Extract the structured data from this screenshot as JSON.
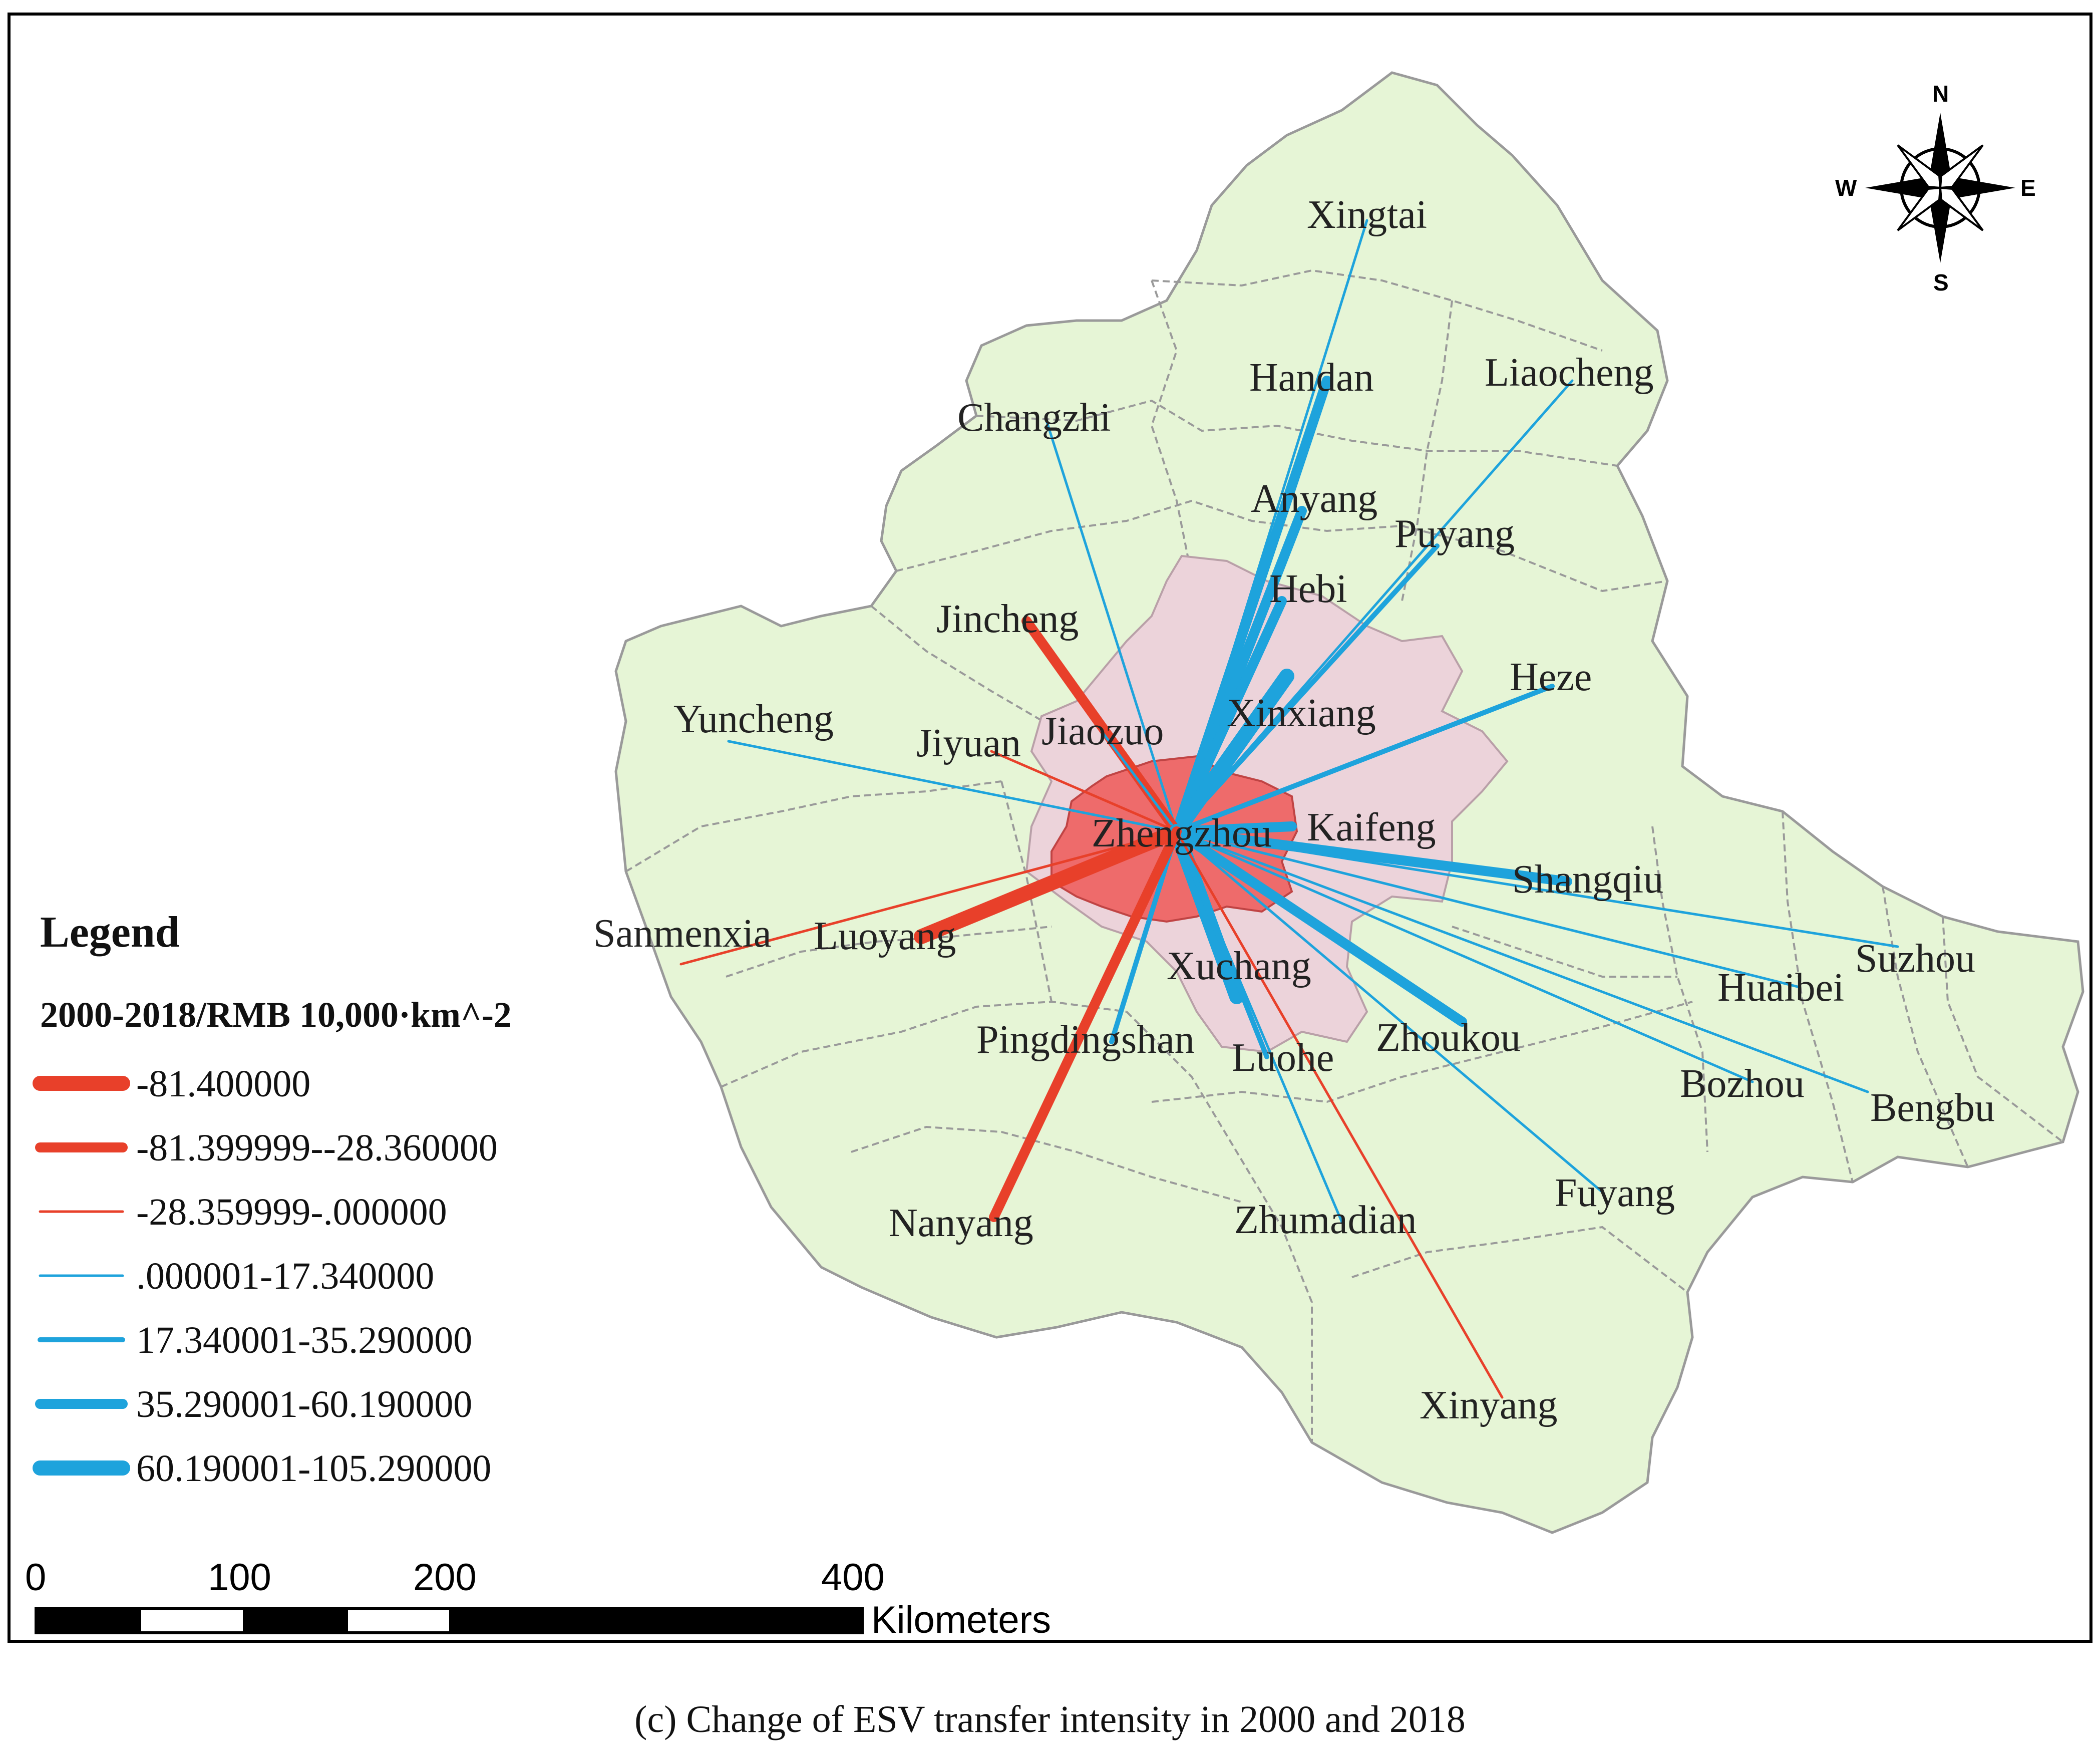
{
  "caption": "(c) Change of ESV transfer intensity in 2000 and 2018",
  "colors": {
    "land": "#e6f5d6",
    "boundary": "#9a9a9a",
    "ring": "#ecd3da",
    "core": "#ee6b6b",
    "negative": "#e8402a",
    "positive": "#1ea3dc"
  },
  "center_city": "Zhengzhou",
  "cities": [
    {
      "name": "Xingtai"
    },
    {
      "name": "Handan"
    },
    {
      "name": "Liaocheng"
    },
    {
      "name": "Changzhi"
    },
    {
      "name": "Anyang"
    },
    {
      "name": "Puyang"
    },
    {
      "name": "Hebi"
    },
    {
      "name": "Jincheng"
    },
    {
      "name": "Heze"
    },
    {
      "name": "Xinxiang"
    },
    {
      "name": "Yuncheng"
    },
    {
      "name": "Jiyuan"
    },
    {
      "name": "Jiaozuo"
    },
    {
      "name": "Zhengzhou"
    },
    {
      "name": "Kaifeng"
    },
    {
      "name": "Shangqiu"
    },
    {
      "name": "Sanmenxia"
    },
    {
      "name": "Luoyang"
    },
    {
      "name": "Xuchang"
    },
    {
      "name": "Suzhou"
    },
    {
      "name": "Huaibei"
    },
    {
      "name": "Pingdingshan"
    },
    {
      "name": "Luohe"
    },
    {
      "name": "Zhoukou"
    },
    {
      "name": "Bozhou"
    },
    {
      "name": "Bengbu"
    },
    {
      "name": "Fuyang"
    },
    {
      "name": "Nanyang"
    },
    {
      "name": "Zhumadian"
    },
    {
      "name": "Xinyang"
    }
  ],
  "flows": [
    {
      "to": "Xingtai",
      "class": 3
    },
    {
      "to": "Handan",
      "class": 5
    },
    {
      "to": "Liaocheng",
      "class": 3
    },
    {
      "to": "Changzhi",
      "class": 3
    },
    {
      "to": "Anyang",
      "class": 5
    },
    {
      "to": "Puyang",
      "class": 4
    },
    {
      "to": "Hebi",
      "class": 5
    },
    {
      "to": "Xinxiang",
      "class": 6
    },
    {
      "to": "Heze",
      "class": 4
    },
    {
      "to": "Jincheng",
      "class": 1
    },
    {
      "to": "Jiaozuo",
      "class": 3
    },
    {
      "to": "Jiyuan",
      "class": 2
    },
    {
      "to": "Yuncheng",
      "class": 3
    },
    {
      "to": "Kaifeng",
      "class": 5
    },
    {
      "to": "Shangqiu",
      "class": 5
    },
    {
      "to": "Sanmenxia",
      "class": 2
    },
    {
      "to": "Luoyang",
      "class": 0
    },
    {
      "to": "Suzhou",
      "class": 3
    },
    {
      "to": "Huaibei",
      "class": 3
    },
    {
      "to": "Bengbu",
      "class": 3
    },
    {
      "to": "Bozhou",
      "class": 3
    },
    {
      "to": "Zhoukou",
      "class": 5
    },
    {
      "to": "Fuyang",
      "class": 3
    },
    {
      "to": "Xuchang",
      "class": 6
    },
    {
      "to": "Luohe",
      "class": 4
    },
    {
      "to": "Zhumadian",
      "class": 3
    },
    {
      "to": "Xinyang",
      "class": 2
    },
    {
      "to": "Pingdingshan",
      "class": 4
    },
    {
      "to": "Nanyang",
      "class": 1
    }
  ],
  "legend": {
    "title": "Legend",
    "subtitle": "2000-2018/RMB 10,000·km^-2",
    "items": [
      {
        "label": "-81.400000",
        "color": "#e8402a",
        "class": 0
      },
      {
        "label": "-81.399999--28.360000",
        "color": "#e8402a",
        "class": 1
      },
      {
        "label": "-28.359999-.000000",
        "color": "#e8402a",
        "class": 2
      },
      {
        "label": ".000001-17.340000",
        "color": "#1ea3dc",
        "class": 3
      },
      {
        "label": "17.340001-35.290000",
        "color": "#1ea3dc",
        "class": 4
      },
      {
        "label": "35.290001-60.190000",
        "color": "#1ea3dc",
        "class": 5
      },
      {
        "label": "60.190001-105.290000",
        "color": "#1ea3dc",
        "class": 6
      }
    ]
  },
  "scale_bar": {
    "ticks": [
      "0",
      "100",
      "200",
      "400"
    ],
    "unit": "Kilometers"
  },
  "compass": {
    "n": "N",
    "s": "S",
    "e": "E",
    "w": "W"
  }
}
